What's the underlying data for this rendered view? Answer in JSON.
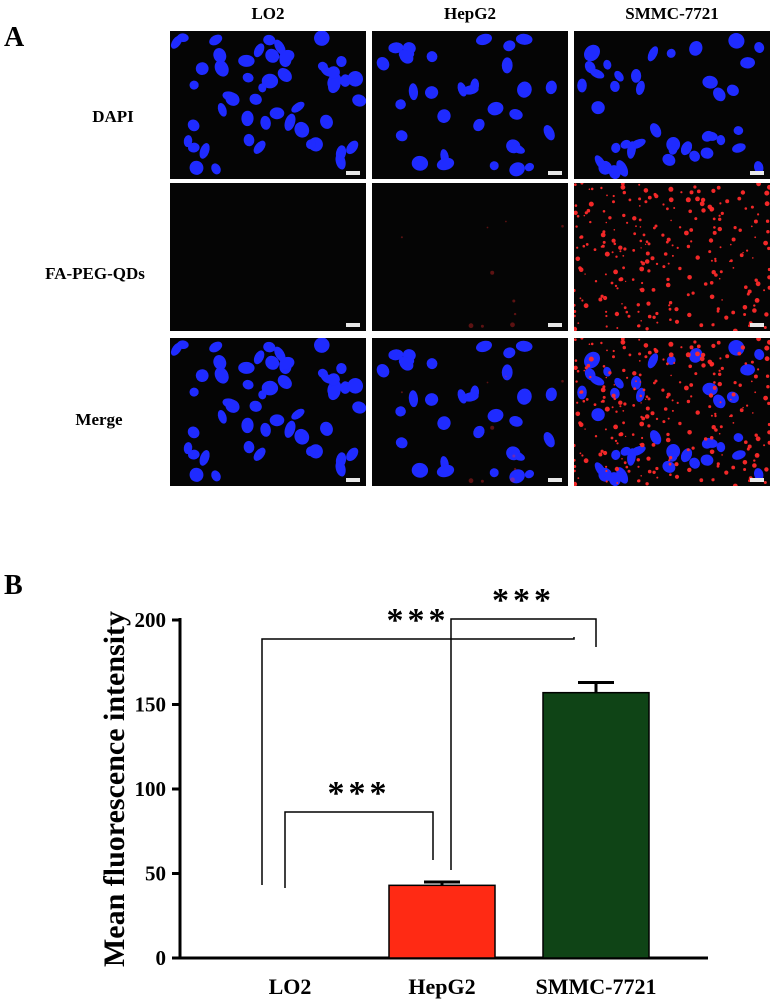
{
  "panel_a": {
    "letter": "A",
    "columns": [
      "LO2",
      "HepG2",
      "SMMC-7721"
    ],
    "rows": [
      "DAPI",
      "FA-PEG-QDs",
      "Merge"
    ],
    "colors": {
      "nucleus": "#1f2bff",
      "quantum_dot": "#ff2a2a",
      "background": "#050505"
    }
  },
  "panel_b": {
    "letter": "B"
  },
  "chart_data": {
    "type": "bar",
    "categories": [
      "LO2",
      "HepG2",
      "SMMC-7721"
    ],
    "values": [
      0,
      43,
      157
    ],
    "errors": [
      0,
      2,
      6
    ],
    "colors": [
      "#ffffff",
      "#ff2a14",
      "#0f4416"
    ],
    "title": "",
    "xlabel": "",
    "ylabel": "Mean fluorescence intensity",
    "ylim": [
      0,
      200
    ],
    "yticks": [
      0,
      50,
      100,
      150,
      200
    ],
    "significance": [
      {
        "from": "LO2",
        "to": "HepG2",
        "label": "***"
      },
      {
        "from": "LO2",
        "to": "SMMC-7721",
        "label": "***"
      },
      {
        "from": "HepG2",
        "to": "SMMC-7721",
        "label": "***"
      }
    ]
  }
}
